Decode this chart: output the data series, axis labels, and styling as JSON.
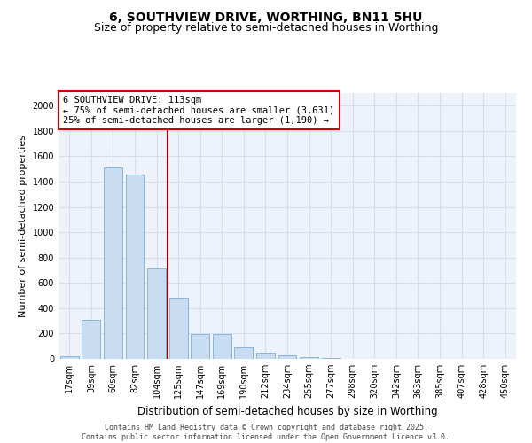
{
  "title1": "6, SOUTHVIEW DRIVE, WORTHING, BN11 5HU",
  "title2": "Size of property relative to semi-detached houses in Worthing",
  "xlabel": "Distribution of semi-detached houses by size in Worthing",
  "ylabel": "Number of semi-detached properties",
  "categories": [
    "17sqm",
    "39sqm",
    "60sqm",
    "82sqm",
    "104sqm",
    "125sqm",
    "147sqm",
    "169sqm",
    "190sqm",
    "212sqm",
    "234sqm",
    "255sqm",
    "277sqm",
    "298sqm",
    "320sqm",
    "342sqm",
    "363sqm",
    "385sqm",
    "407sqm",
    "428sqm",
    "450sqm"
  ],
  "values": [
    20,
    310,
    1510,
    1455,
    715,
    480,
    198,
    198,
    90,
    48,
    25,
    15,
    10,
    0,
    0,
    0,
    0,
    0,
    0,
    0,
    0
  ],
  "bar_color": "#c9ddf2",
  "bar_edge_color": "#7aadd4",
  "vline_x": 4.5,
  "vline_color": "#990000",
  "annotation_text": "6 SOUTHVIEW DRIVE: 113sqm\n← 75% of semi-detached houses are smaller (3,631)\n25% of semi-detached houses are larger (1,190) →",
  "annotation_box_color": "#cc0000",
  "ylim": [
    0,
    2100
  ],
  "yticks": [
    0,
    200,
    400,
    600,
    800,
    1000,
    1200,
    1400,
    1600,
    1800,
    2000
  ],
  "background_color": "#eef2fb",
  "grid_color": "#d8dde8",
  "footer": "Contains HM Land Registry data © Crown copyright and database right 2025.\nContains public sector information licensed under the Open Government Licence v3.0.",
  "title1_fontsize": 10,
  "title2_fontsize": 9,
  "xlabel_fontsize": 8.5,
  "ylabel_fontsize": 8,
  "tick_fontsize": 7,
  "annotation_fontsize": 7.5,
  "footer_fontsize": 6
}
